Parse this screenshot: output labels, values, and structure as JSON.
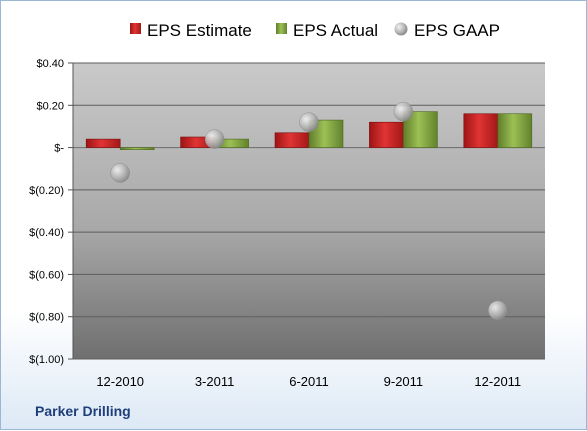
{
  "company": "Parker Drilling",
  "chart_data": {
    "type": "bar",
    "categories": [
      "12-2010",
      "3-2011",
      "6-2011",
      "9-2011",
      "12-2011"
    ],
    "series": [
      {
        "name": "EPS Estimate",
        "kind": "bar",
        "color": "#d42a2a",
        "values": [
          0.04,
          0.05,
          0.07,
          0.12,
          0.16
        ]
      },
      {
        "name": "EPS Actual",
        "kind": "bar",
        "color": "#8cb04a",
        "values": [
          -0.01,
          0.04,
          0.13,
          0.17,
          0.16
        ]
      },
      {
        "name": "EPS GAAP",
        "kind": "marker",
        "color": "#b4b4b4",
        "values": [
          -0.12,
          0.04,
          0.12,
          0.17,
          -0.77
        ]
      }
    ],
    "y_ticks": [
      "$0.40",
      "$0.20",
      "$-",
      "$(0.20)",
      "$(0.40)",
      "$(0.60)",
      "$(0.80)",
      "$(1.00)"
    ],
    "y_tick_values": [
      0.4,
      0.2,
      0,
      -0.2,
      -0.4,
      -0.6,
      -0.8,
      -1.0
    ],
    "ylim": [
      -1.0,
      0.4
    ],
    "grid": true,
    "legend_position": "top"
  }
}
